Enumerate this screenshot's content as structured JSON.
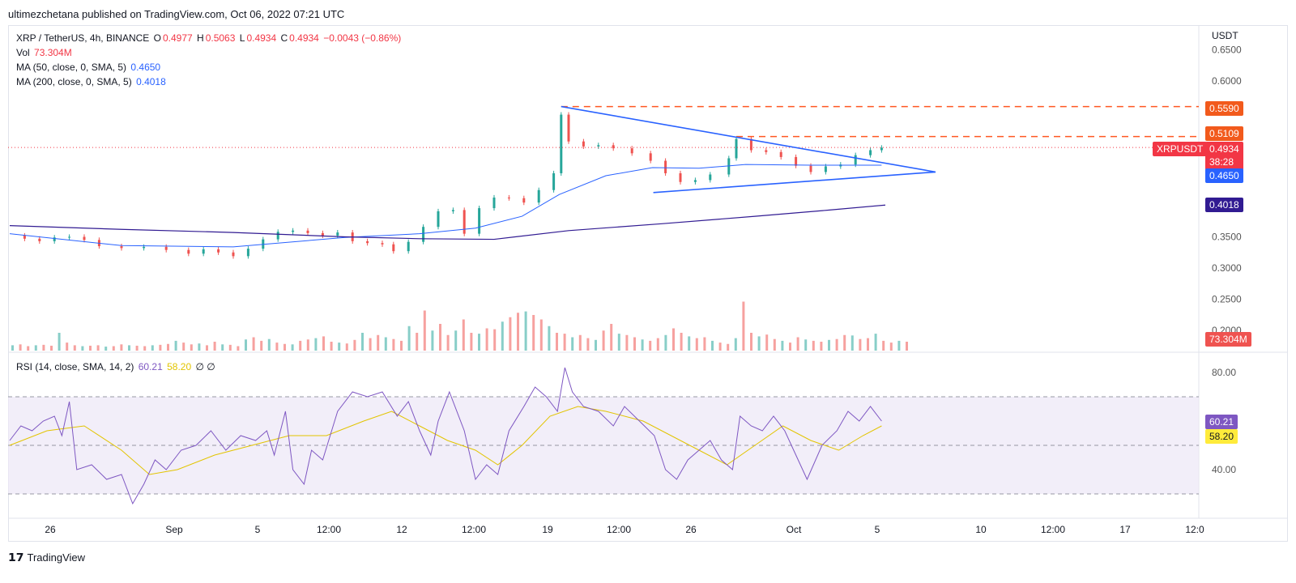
{
  "header": {
    "published": "ultimezchetana published on TradingView.com, Oct 06, 2022 07:21 UTC"
  },
  "legend": {
    "symbol": "XRP / TetherUS, 4h, BINANCE",
    "open_label": "O",
    "open": "0.4977",
    "high_label": "H",
    "high": "0.5063",
    "low_label": "L",
    "low": "0.4934",
    "close_label": "C",
    "close": "0.4934",
    "change": "−0.0043 (−0.86%)",
    "vol_label": "Vol",
    "vol": "73.304M",
    "ma50_label": "MA (50, close, 0, SMA, 5)",
    "ma50": "0.4650",
    "ma200_label": "MA (200, close, 0, SMA, 5)",
    "ma200": "0.4018",
    "rsi_label": "RSI (14, close, SMA, 14, 2)",
    "rsi": "60.21",
    "rsi_ma": "58.20",
    "rsi_extra": "∅ ∅"
  },
  "tags": {
    "symbol": "XRPUSDT",
    "resistance": "0.5590",
    "resistance2": "0.5109",
    "price": "0.4934",
    "countdown": "38:28",
    "ma50": "0.4650",
    "ma200": "0.4018",
    "volume": "73.304M",
    "rsi": "60.21",
    "rsi_ma": "58.20"
  },
  "footer": {
    "brand": "TradingView",
    "brand_icon": "tradingview-logo-icon"
  },
  "colors": {
    "up": "#26a69a",
    "down": "#ef5350",
    "ma50": "#2962ff",
    "ma200": "#311b92",
    "rsi": "#7e57c2",
    "rsi_ma": "#e2c400",
    "level": "#ff5722"
  },
  "chart_data": [
    {
      "type": "candlestick",
      "title": "XRP / TetherUS, 4h, BINANCE",
      "ylabel": "USDT",
      "y_ticks": [
        "0.6500",
        "0.6000",
        "0.3500",
        "0.3000",
        "0.2500",
        "0.2000"
      ],
      "x_ticks": [
        "26",
        "Sep",
        "5",
        "12:00",
        "12",
        "12:00",
        "19",
        "12:00",
        "26",
        "Oct",
        "5",
        "10",
        "12:00",
        "17",
        "12:0"
      ],
      "close_path": [
        [
          0,
          0.352
        ],
        [
          8,
          0.347
        ],
        [
          16,
          0.343
        ],
        [
          24,
          0.349
        ],
        [
          32,
          0.35
        ],
        [
          40,
          0.345
        ],
        [
          48,
          0.335
        ],
        [
          60,
          0.332
        ],
        [
          72,
          0.334
        ],
        [
          84,
          0.329
        ],
        [
          96,
          0.323
        ],
        [
          104,
          0.33
        ],
        [
          112,
          0.325
        ],
        [
          120,
          0.319
        ],
        [
          128,
          0.331
        ],
        [
          136,
          0.346
        ],
        [
          144,
          0.358
        ],
        [
          152,
          0.36
        ],
        [
          160,
          0.356
        ],
        [
          168,
          0.352
        ],
        [
          176,
          0.357
        ],
        [
          184,
          0.343
        ],
        [
          192,
          0.34
        ],
        [
          200,
          0.338
        ],
        [
          206,
          0.327
        ],
        [
          214,
          0.342
        ],
        [
          222,
          0.366
        ],
        [
          230,
          0.391
        ],
        [
          238,
          0.393
        ],
        [
          244,
          0.355
        ],
        [
          252,
          0.396
        ],
        [
          260,
          0.413
        ],
        [
          268,
          0.412
        ],
        [
          276,
          0.405
        ],
        [
          284,
          0.425
        ],
        [
          292,
          0.452
        ],
        [
          296,
          0.546
        ],
        [
          300,
          0.503
        ],
        [
          308,
          0.495
        ],
        [
          316,
          0.497
        ],
        [
          324,
          0.492
        ],
        [
          334,
          0.484
        ],
        [
          344,
          0.472
        ],
        [
          352,
          0.452
        ],
        [
          360,
          0.438
        ],
        [
          368,
          0.441
        ],
        [
          376,
          0.45
        ],
        [
          386,
          0.476
        ],
        [
          390,
          0.507
        ],
        [
          398,
          0.489
        ],
        [
          406,
          0.486
        ],
        [
          414,
          0.478
        ],
        [
          422,
          0.464
        ],
        [
          430,
          0.454
        ],
        [
          438,
          0.463
        ],
        [
          446,
          0.466
        ],
        [
          454,
          0.481
        ],
        [
          462,
          0.489
        ],
        [
          468,
          0.493
        ]
      ],
      "ma50_path": [
        [
          0,
          0.355
        ],
        [
          60,
          0.336
        ],
        [
          120,
          0.334
        ],
        [
          180,
          0.349
        ],
        [
          220,
          0.355
        ],
        [
          250,
          0.364
        ],
        [
          275,
          0.383
        ],
        [
          295,
          0.418
        ],
        [
          320,
          0.448
        ],
        [
          345,
          0.461
        ],
        [
          370,
          0.46
        ],
        [
          395,
          0.466
        ],
        [
          430,
          0.465
        ],
        [
          468,
          0.465
        ]
      ],
      "ma200_path": [
        [
          0,
          0.368
        ],
        [
          60,
          0.362
        ],
        [
          120,
          0.357
        ],
        [
          180,
          0.35
        ],
        [
          220,
          0.347
        ],
        [
          260,
          0.346
        ],
        [
          300,
          0.36
        ],
        [
          350,
          0.371
        ],
        [
          400,
          0.383
        ],
        [
          440,
          0.393
        ],
        [
          470,
          0.401
        ]
      ],
      "volume_m": [
        12,
        14,
        10,
        12,
        13,
        11,
        40,
        18,
        12,
        10,
        11,
        12,
        9,
        10,
        14,
        12,
        11,
        10,
        12,
        13,
        15,
        22,
        18,
        14,
        16,
        12,
        20,
        14,
        13,
        10,
        25,
        30,
        22,
        26,
        18,
        15,
        14,
        22,
        25,
        28,
        32,
        20,
        18,
        16,
        24,
        40,
        28,
        35,
        30,
        26,
        22,
        55,
        40,
        90,
        45,
        60,
        35,
        45,
        70,
        40,
        38,
        50,
        48,
        65,
        75,
        85,
        88,
        80,
        70,
        55,
        40,
        38,
        30,
        35,
        28,
        24,
        45,
        60,
        38,
        35,
        30,
        25,
        22,
        28,
        35,
        50,
        40,
        32,
        28,
        30,
        22,
        18,
        15,
        28,
        110,
        40,
        32,
        36,
        26,
        22,
        18,
        30,
        25,
        22,
        20,
        24,
        26,
        35,
        34,
        26,
        28,
        38,
        22,
        18,
        22,
        20
      ],
      "levels": [
        0.559,
        0.5109
      ],
      "triangle": {
        "apex_price": 0.454,
        "upper_start": 0.559,
        "lower_start": 0.421
      },
      "last_price": 0.4934
    },
    {
      "type": "line",
      "title": "RSI (14, close, SMA, 14, 2)",
      "y_ticks": [
        "80.00",
        "40.00"
      ],
      "bands": [
        70,
        30
      ],
      "midline": 50,
      "rsi_path": [
        [
          0,
          52
        ],
        [
          6,
          58
        ],
        [
          12,
          56
        ],
        [
          18,
          60
        ],
        [
          24,
          62
        ],
        [
          28,
          54
        ],
        [
          32,
          68
        ],
        [
          36,
          40
        ],
        [
          44,
          42
        ],
        [
          52,
          36
        ],
        [
          60,
          38
        ],
        [
          66,
          26
        ],
        [
          72,
          34
        ],
        [
          78,
          44
        ],
        [
          84,
          40
        ],
        [
          92,
          48
        ],
        [
          100,
          50
        ],
        [
          108,
          56
        ],
        [
          116,
          48
        ],
        [
          124,
          54
        ],
        [
          132,
          52
        ],
        [
          138,
          56
        ],
        [
          142,
          46
        ],
        [
          148,
          64
        ],
        [
          152,
          40
        ],
        [
          158,
          34
        ],
        [
          162,
          48
        ],
        [
          168,
          44
        ],
        [
          176,
          64
        ],
        [
          184,
          72
        ],
        [
          192,
          70
        ],
        [
          200,
          72
        ],
        [
          208,
          62
        ],
        [
          214,
          68
        ],
        [
          220,
          56
        ],
        [
          226,
          46
        ],
        [
          230,
          60
        ],
        [
          236,
          72
        ],
        [
          244,
          56
        ],
        [
          250,
          36
        ],
        [
          256,
          42
        ],
        [
          262,
          38
        ],
        [
          268,
          56
        ],
        [
          276,
          66
        ],
        [
          282,
          74
        ],
        [
          288,
          70
        ],
        [
          294,
          64
        ],
        [
          298,
          82
        ],
        [
          302,
          72
        ],
        [
          308,
          66
        ],
        [
          316,
          64
        ],
        [
          324,
          58
        ],
        [
          330,
          66
        ],
        [
          338,
          60
        ],
        [
          346,
          54
        ],
        [
          352,
          40
        ],
        [
          358,
          36
        ],
        [
          364,
          44
        ],
        [
          370,
          48
        ],
        [
          376,
          52
        ],
        [
          382,
          44
        ],
        [
          388,
          40
        ],
        [
          392,
          62
        ],
        [
          398,
          58
        ],
        [
          404,
          56
        ],
        [
          410,
          62
        ],
        [
          416,
          56
        ],
        [
          422,
          46
        ],
        [
          428,
          36
        ],
        [
          436,
          50
        ],
        [
          444,
          56
        ],
        [
          450,
          64
        ],
        [
          456,
          60
        ],
        [
          462,
          66
        ],
        [
          468,
          60
        ]
      ],
      "rsi_ma_path": [
        [
          0,
          50
        ],
        [
          20,
          56
        ],
        [
          40,
          58
        ],
        [
          60,
          48
        ],
        [
          75,
          38
        ],
        [
          90,
          40
        ],
        [
          110,
          46
        ],
        [
          130,
          50
        ],
        [
          150,
          54
        ],
        [
          170,
          54
        ],
        [
          190,
          60
        ],
        [
          205,
          64
        ],
        [
          220,
          58
        ],
        [
          235,
          52
        ],
        [
          250,
          48
        ],
        [
          262,
          42
        ],
        [
          275,
          50
        ],
        [
          290,
          62
        ],
        [
          305,
          66
        ],
        [
          320,
          64
        ],
        [
          340,
          60
        ],
        [
          355,
          54
        ],
        [
          370,
          48
        ],
        [
          385,
          42
        ],
        [
          400,
          50
        ],
        [
          415,
          58
        ],
        [
          430,
          52
        ],
        [
          445,
          48
        ],
        [
          458,
          54
        ],
        [
          468,
          58
        ]
      ]
    }
  ]
}
